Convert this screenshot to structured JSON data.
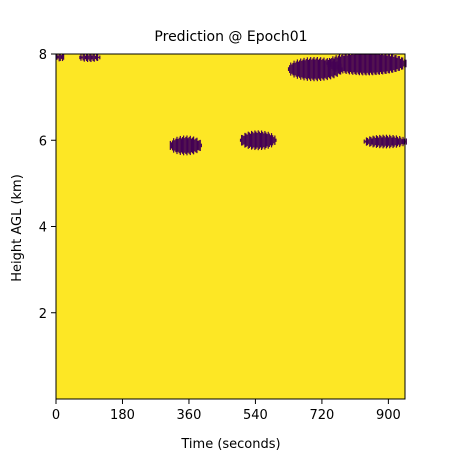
{
  "chart_data": {
    "type": "heatmap",
    "title": "Prediction @ Epoch01",
    "xlabel": "Time (seconds)",
    "ylabel": "Height AGL (km)",
    "xlim": [
      0,
      945
    ],
    "ylim": [
      0,
      8
    ],
    "xticks": [
      0,
      180,
      360,
      540,
      720,
      900
    ],
    "yticks": [
      2,
      4,
      6,
      8
    ],
    "grid": false,
    "colors": {
      "background": "#fde725",
      "cloud": "#440154"
    },
    "cloud_regions": [
      {
        "t_center": 350,
        "h_center": 5.88,
        "t_halfwidth": 45,
        "h_halfwidth": 0.2
      },
      {
        "t_center": 545,
        "h_center": 6.0,
        "t_halfwidth": 50,
        "h_halfwidth": 0.2
      },
      {
        "t_center": 890,
        "h_center": 5.97,
        "t_halfwidth": 60,
        "h_halfwidth": 0.13
      },
      {
        "t_center": 90,
        "h_center": 7.92,
        "t_halfwidth": 30,
        "h_halfwidth": 0.08
      },
      {
        "t_center": 10,
        "h_center": 7.93,
        "t_halfwidth": 12,
        "h_halfwidth": 0.08
      },
      {
        "t_center": 700,
        "h_center": 7.65,
        "t_halfwidth": 75,
        "h_halfwidth": 0.25
      },
      {
        "t_center": 840,
        "h_center": 7.78,
        "t_halfwidth": 110,
        "h_halfwidth": 0.25
      }
    ]
  }
}
